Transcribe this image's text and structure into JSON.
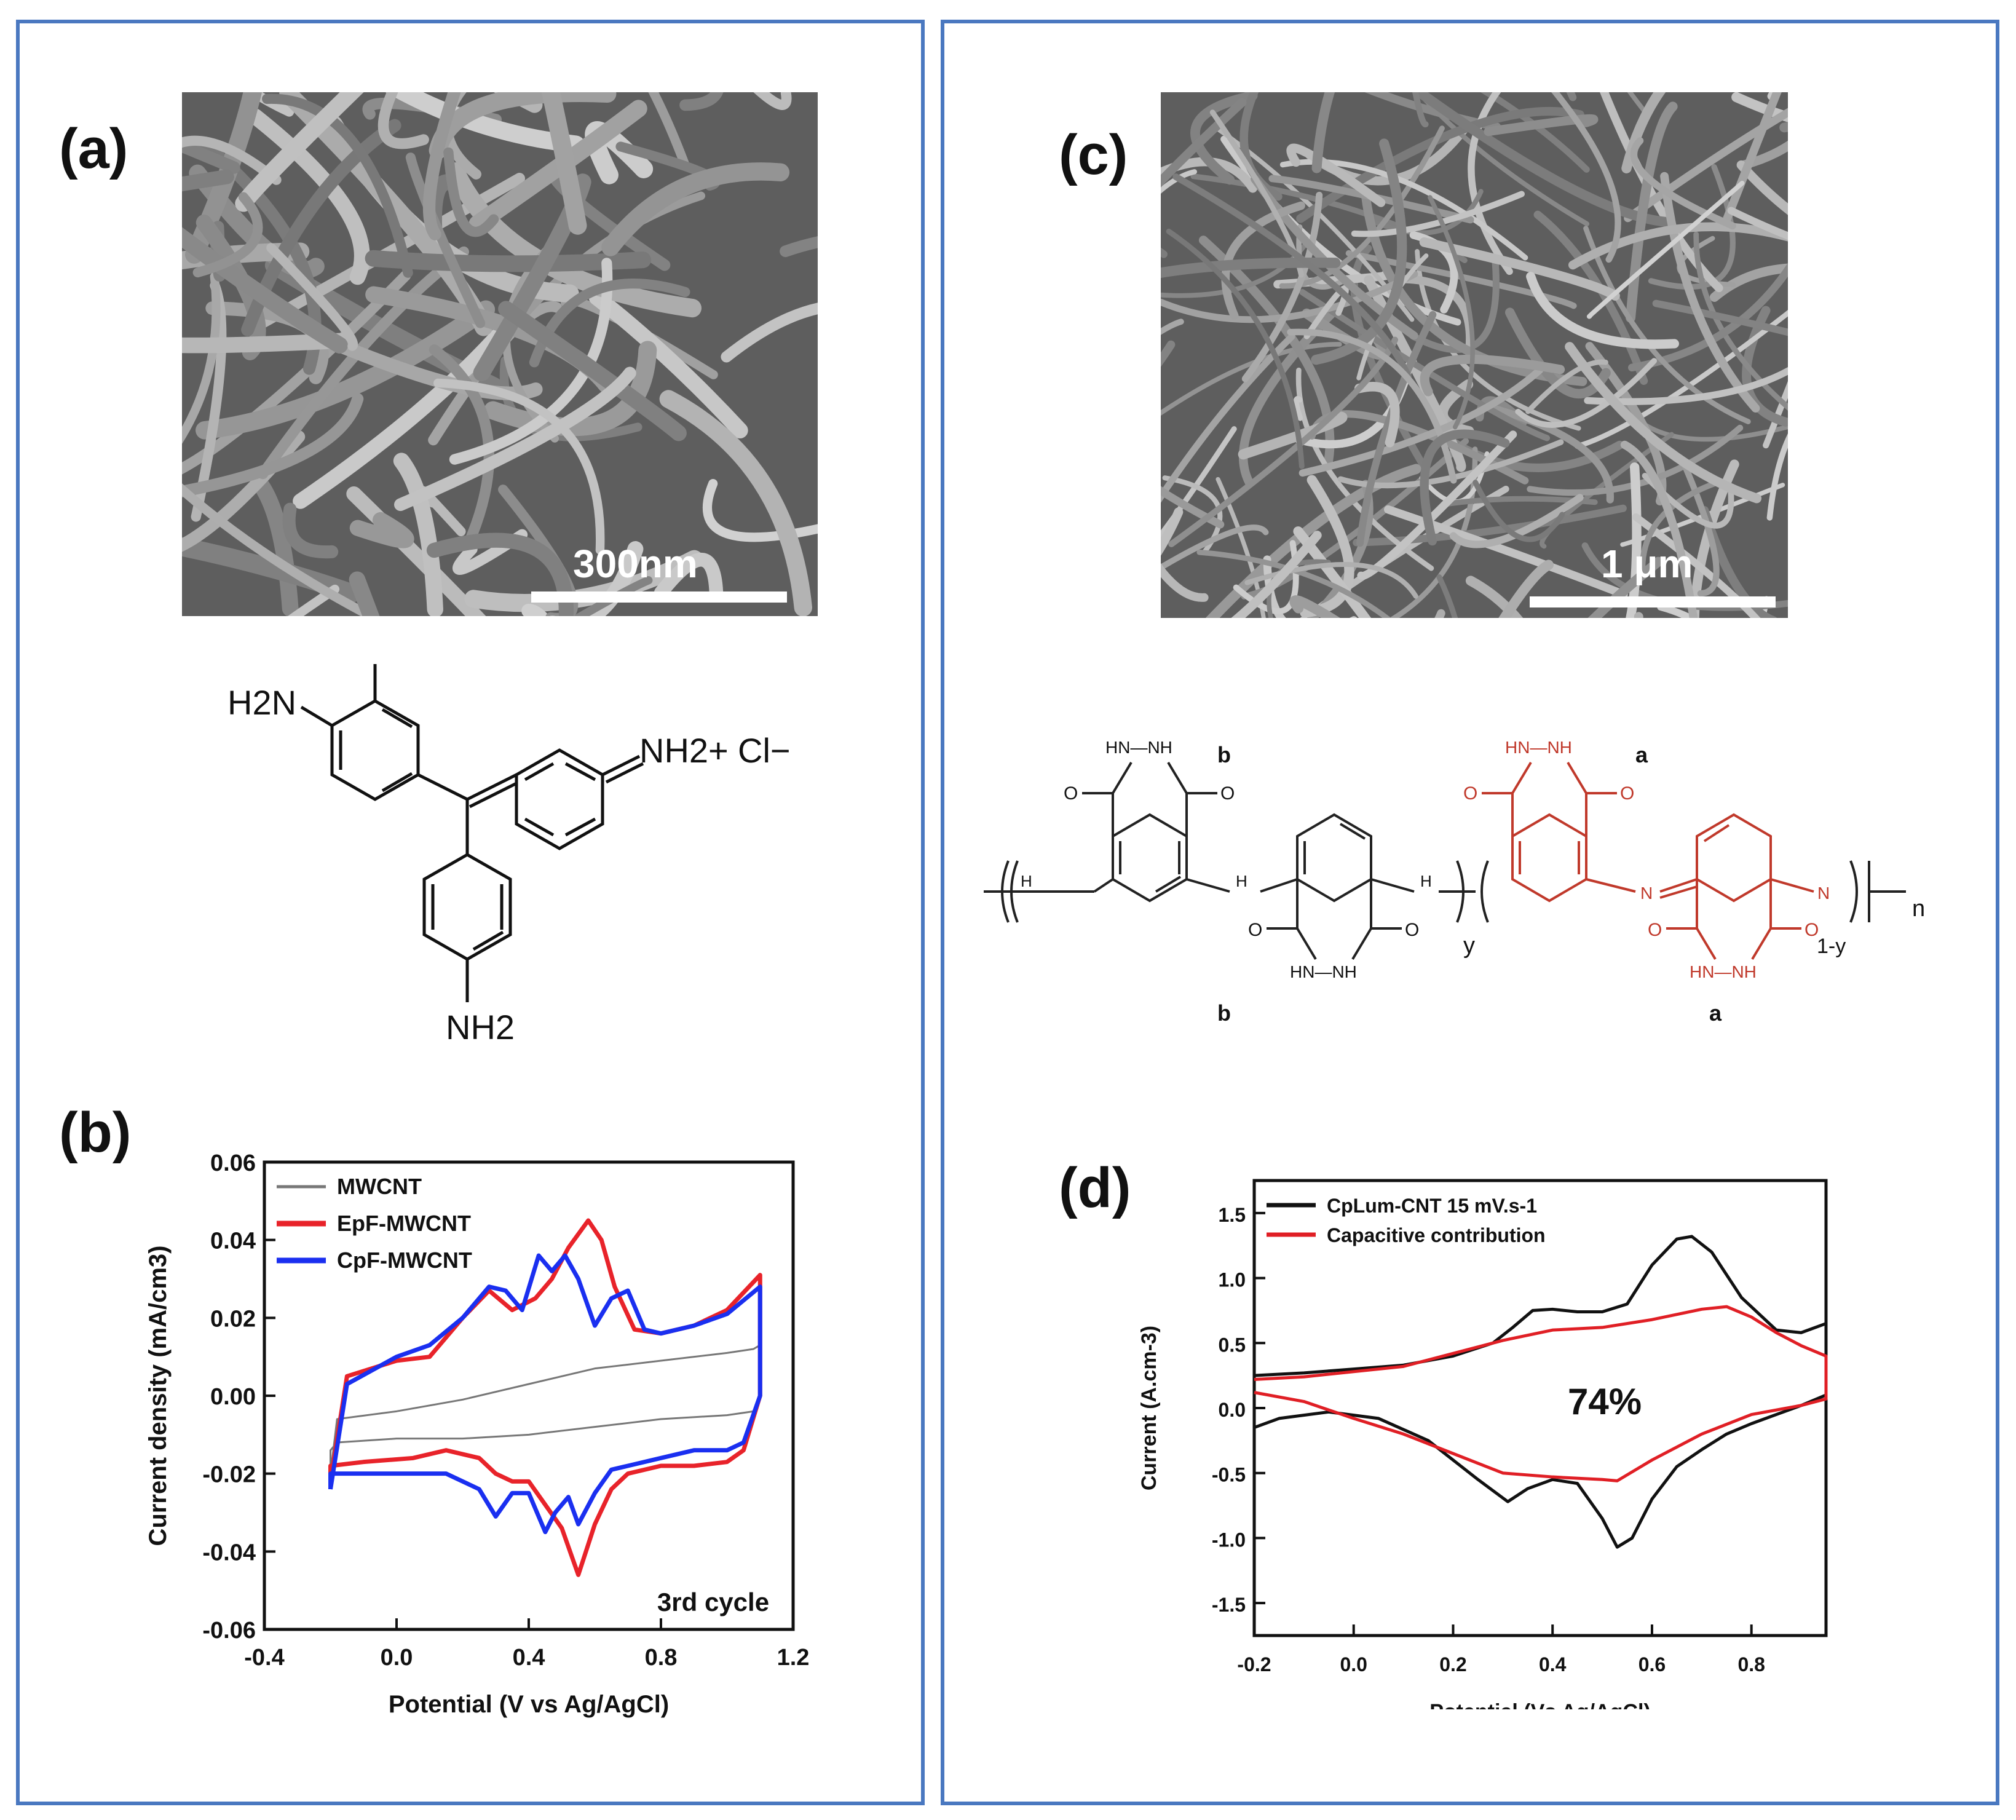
{
  "panels": {
    "a": "(a)",
    "b": "(b)",
    "c": "(c)",
    "d": "(d)"
  },
  "scalebars": {
    "a": "300nm",
    "c": "1 μm"
  },
  "chem_a": {
    "left_amine": "H2N",
    "imine": "NH2+",
    "counterion": "Cl−",
    "bottom_amine": "NH2"
  },
  "chem_c": {
    "label_b": "b",
    "label_a": "a",
    "y": "y",
    "one_minus_y": "1-y",
    "n": "n",
    "hn_nh": "HN—NH",
    "o": "O",
    "h": "H",
    "n_atom": "N"
  },
  "chart_data": [
    {
      "type": "line",
      "panel": "b",
      "xlabel": "Potential (V vs Ag/AgCl)",
      "ylabel": "Current density (mA/cm3)",
      "xlim": [
        -0.4,
        1.2
      ],
      "ylim": [
        -0.06,
        0.06
      ],
      "xticks": [
        "-0.4",
        "0.0",
        "0.4",
        "0.8",
        "1.2"
      ],
      "yticks": [
        "0.06",
        "0.04",
        "0.02",
        "0.00",
        "-0.02",
        "-0.04",
        "-0.06"
      ],
      "annotation": "3rd cycle",
      "legend": "top-left",
      "series": [
        {
          "name": "MWCNT",
          "color": "#777777",
          "x": [
            -0.2,
            -0.18,
            0.0,
            0.2,
            0.4,
            0.6,
            0.8,
            1.0,
            1.08,
            1.1,
            1.1,
            1.08,
            1.0,
            0.8,
            0.6,
            0.4,
            0.2,
            0.0,
            -0.18,
            -0.2,
            -0.2
          ],
          "y": [
            -0.02,
            -0.006,
            -0.004,
            -0.001,
            0.003,
            0.007,
            0.009,
            0.011,
            0.012,
            0.013,
            0.0,
            -0.004,
            -0.005,
            -0.006,
            -0.008,
            -0.01,
            -0.011,
            -0.011,
            -0.012,
            -0.014,
            -0.02
          ]
        },
        {
          "name": "EpF-MWCNT",
          "color": "#e8232a",
          "x": [
            -0.2,
            -0.15,
            0.0,
            0.1,
            0.2,
            0.28,
            0.35,
            0.42,
            0.47,
            0.52,
            0.58,
            0.62,
            0.66,
            0.72,
            0.8,
            0.9,
            1.0,
            1.1,
            1.1,
            1.05,
            1.0,
            0.9,
            0.8,
            0.7,
            0.65,
            0.6,
            0.55,
            0.5,
            0.45,
            0.4,
            0.35,
            0.3,
            0.25,
            0.15,
            0.05,
            -0.1,
            -0.2,
            -0.2
          ],
          "y": [
            -0.022,
            0.005,
            0.009,
            0.01,
            0.02,
            0.027,
            0.022,
            0.025,
            0.03,
            0.038,
            0.045,
            0.04,
            0.028,
            0.017,
            0.016,
            0.018,
            0.022,
            0.031,
            0.0,
            -0.014,
            -0.017,
            -0.018,
            -0.018,
            -0.02,
            -0.024,
            -0.033,
            -0.046,
            -0.034,
            -0.028,
            -0.022,
            -0.022,
            -0.02,
            -0.016,
            -0.014,
            -0.016,
            -0.017,
            -0.018,
            -0.022
          ]
        },
        {
          "name": "CpF-MWCNT",
          "color": "#1a2ff0",
          "x": [
            -0.2,
            -0.15,
            0.0,
            0.1,
            0.2,
            0.28,
            0.33,
            0.38,
            0.43,
            0.47,
            0.51,
            0.55,
            0.6,
            0.65,
            0.7,
            0.75,
            0.8,
            0.9,
            1.0,
            1.1,
            1.1,
            1.05,
            1.0,
            0.9,
            0.8,
            0.7,
            0.65,
            0.6,
            0.55,
            0.52,
            0.48,
            0.45,
            0.4,
            0.35,
            0.3,
            0.25,
            0.15,
            0.05,
            -0.1,
            -0.2,
            -0.2
          ],
          "y": [
            -0.024,
            0.003,
            0.01,
            0.013,
            0.02,
            0.028,
            0.027,
            0.022,
            0.036,
            0.032,
            0.036,
            0.03,
            0.018,
            0.025,
            0.027,
            0.017,
            0.016,
            0.018,
            0.021,
            0.028,
            0.0,
            -0.012,
            -0.014,
            -0.014,
            -0.016,
            -0.018,
            -0.019,
            -0.025,
            -0.033,
            -0.026,
            -0.03,
            -0.035,
            -0.025,
            -0.025,
            -0.031,
            -0.024,
            -0.02,
            -0.02,
            -0.02,
            -0.02,
            -0.024
          ]
        }
      ]
    },
    {
      "type": "line",
      "panel": "d",
      "xlabel": "Potential (Vs Ag/AgCl)",
      "ylabel": "Current (A.cm-3)",
      "xlim": [
        -0.2,
        0.95
      ],
      "ylim": [
        -1.75,
        1.75
      ],
      "xticks": [
        "-0.2",
        "0.0",
        "0.2",
        "0.4",
        "0.6",
        "0.8"
      ],
      "yticks": [
        "1.5",
        "1.0",
        "0.5",
        "0.0",
        "-0.5",
        "-1.0",
        "-1.5"
      ],
      "annotation": "74%",
      "legend": "top-left",
      "series": [
        {
          "name": "CpLum-CNT 15 mV.s-1",
          "color": "#111111",
          "x": [
            -0.2,
            -0.1,
            0.0,
            0.1,
            0.2,
            0.28,
            0.32,
            0.36,
            0.4,
            0.45,
            0.5,
            0.55,
            0.6,
            0.65,
            0.68,
            0.72,
            0.78,
            0.85,
            0.9,
            0.95,
            0.95,
            0.9,
            0.85,
            0.8,
            0.75,
            0.7,
            0.65,
            0.6,
            0.56,
            0.53,
            0.5,
            0.45,
            0.4,
            0.35,
            0.31,
            0.25,
            0.15,
            0.05,
            -0.05,
            -0.15,
            -0.2
          ],
          "y": [
            0.25,
            0.27,
            0.3,
            0.33,
            0.4,
            0.5,
            0.62,
            0.75,
            0.76,
            0.74,
            0.74,
            0.8,
            1.1,
            1.3,
            1.32,
            1.2,
            0.85,
            0.6,
            0.58,
            0.65,
            0.1,
            0.02,
            -0.05,
            -0.12,
            -0.2,
            -0.32,
            -0.45,
            -0.7,
            -1.0,
            -1.07,
            -0.85,
            -0.58,
            -0.55,
            -0.62,
            -0.72,
            -0.55,
            -0.25,
            -0.08,
            -0.03,
            -0.08,
            -0.15
          ]
        },
        {
          "name": "Capacitive contribution",
          "color": "#e01f25",
          "x": [
            -0.2,
            -0.1,
            0.0,
            0.1,
            0.2,
            0.3,
            0.4,
            0.5,
            0.6,
            0.7,
            0.75,
            0.8,
            0.85,
            0.9,
            0.95,
            0.95,
            0.9,
            0.8,
            0.7,
            0.6,
            0.53,
            0.5,
            0.4,
            0.3,
            0.2,
            0.1,
            0.0,
            -0.1,
            -0.2
          ],
          "y": [
            0.22,
            0.24,
            0.28,
            0.32,
            0.42,
            0.52,
            0.6,
            0.62,
            0.68,
            0.76,
            0.78,
            0.7,
            0.58,
            0.48,
            0.4,
            0.07,
            0.02,
            -0.05,
            -0.2,
            -0.4,
            -0.56,
            -0.55,
            -0.53,
            -0.5,
            -0.35,
            -0.2,
            -0.08,
            0.05,
            0.12
          ]
        }
      ]
    }
  ]
}
